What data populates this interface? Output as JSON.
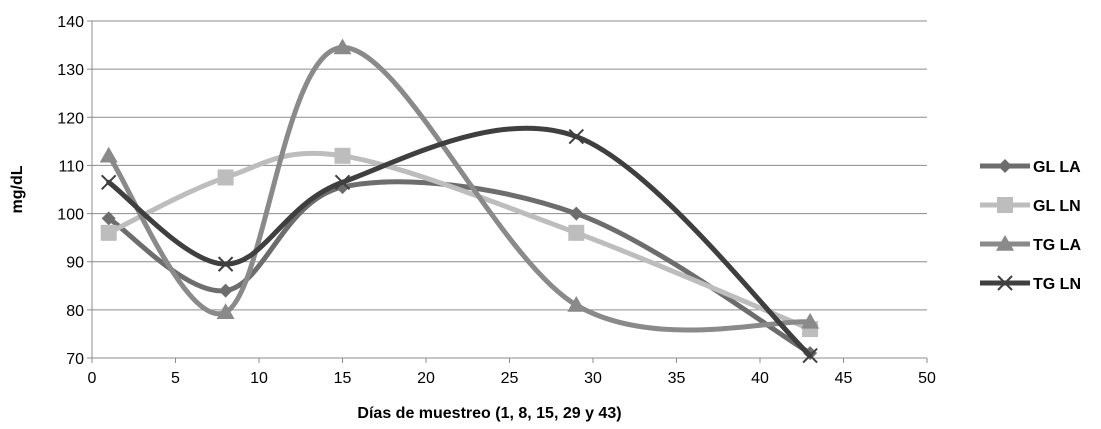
{
  "chart_data": {
    "type": "line",
    "title": "",
    "xlabel": "Días de muestreo (1, 8, 15, 29 y 43)",
    "ylabel": "mg/dL",
    "xlim": [
      0,
      50
    ],
    "ylim": [
      70,
      140
    ],
    "xticks": [
      0,
      5,
      10,
      15,
      20,
      25,
      30,
      35,
      40,
      45,
      50
    ],
    "yticks": [
      70,
      80,
      90,
      100,
      110,
      120,
      130,
      140
    ],
    "grid": "horizontal",
    "smooth": true,
    "legend_position": "right",
    "x": [
      1,
      8,
      15,
      29,
      43
    ],
    "series": [
      {
        "name": "GL LA",
        "color": "#6d6d6d",
        "marker": "diamond",
        "values": [
          99,
          84,
          105.5,
          100,
          71
        ]
      },
      {
        "name": "GL LN",
        "color": "#bdbdbd",
        "marker": "square",
        "values": [
          96,
          107.5,
          112,
          96,
          76
        ]
      },
      {
        "name": "TG LA",
        "color": "#8a8a8a",
        "marker": "triangle",
        "values": [
          112,
          79.5,
          134.5,
          81,
          77.5
        ]
      },
      {
        "name": "TG LN",
        "color": "#3f3f3f",
        "marker": "x",
        "values": [
          106.5,
          89.5,
          106.5,
          116,
          70.5
        ]
      }
    ]
  }
}
